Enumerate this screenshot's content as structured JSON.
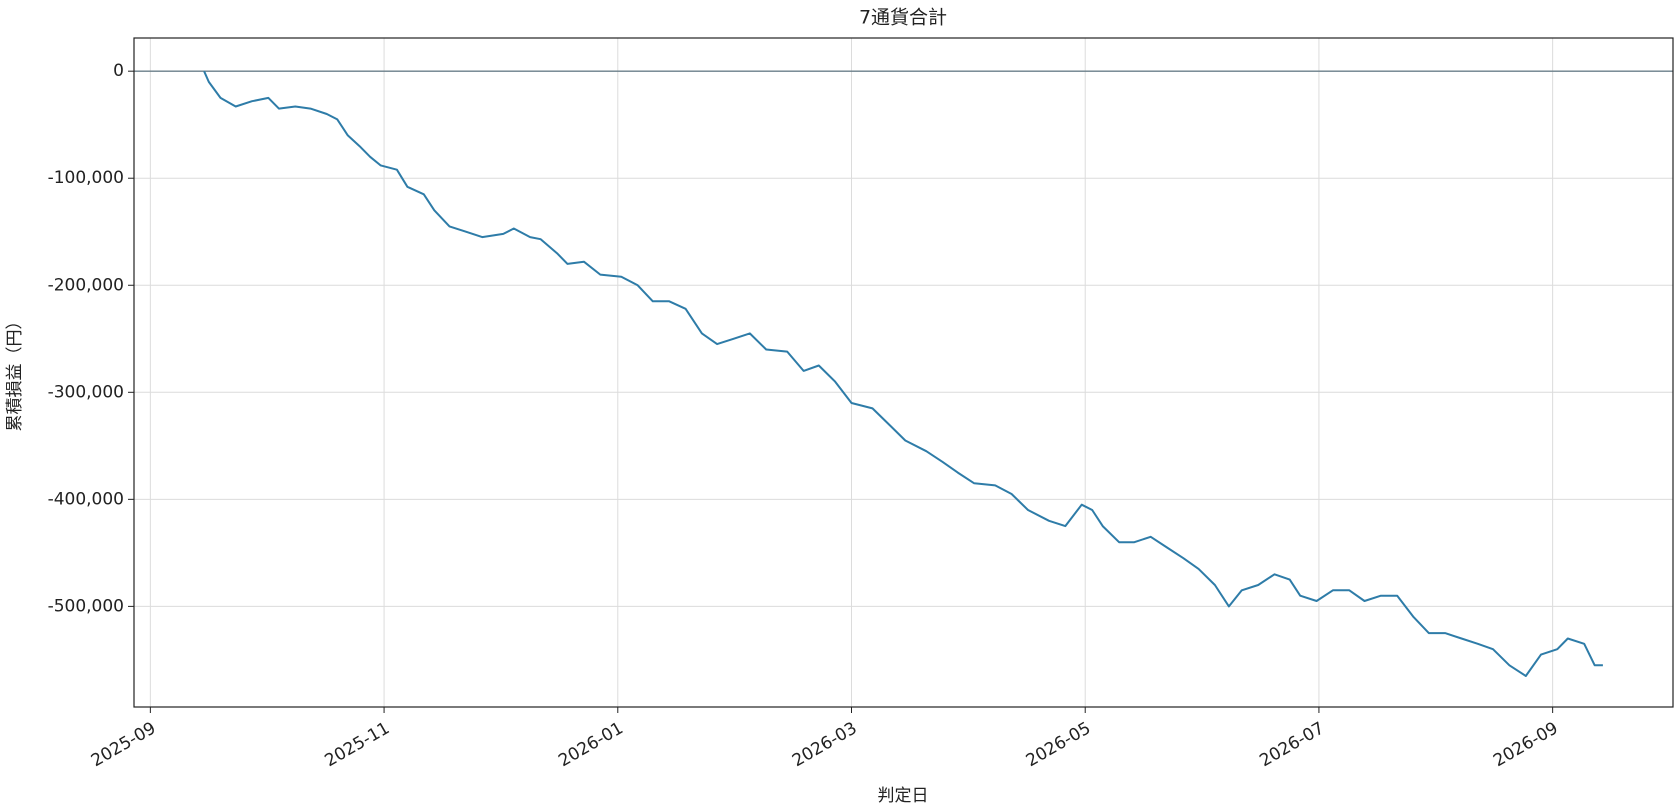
{
  "chart_data": {
    "type": "line",
    "title": "7通貨合計",
    "xlabel": "判定日",
    "ylabel": "累積損益（円）",
    "x": [
      0.46,
      0.5,
      0.6,
      0.73,
      0.87,
      1.01,
      1.1,
      1.24,
      1.37,
      1.51,
      1.6,
      1.69,
      1.79,
      1.88,
      1.97,
      2.11,
      2.2,
      2.34,
      2.43,
      2.56,
      2.7,
      2.84,
      3.02,
      3.11,
      3.25,
      3.34,
      3.48,
      3.57,
      3.71,
      3.85,
      4.03,
      4.17,
      4.3,
      4.44,
      4.58,
      4.72,
      4.85,
      4.99,
      5.13,
      5.27,
      5.45,
      5.59,
      5.72,
      5.86,
      6.0,
      6.18,
      6.32,
      6.46,
      6.64,
      6.78,
      6.91,
      7.05,
      7.23,
      7.37,
      7.51,
      7.69,
      7.83,
      7.97,
      8.06,
      8.15,
      8.29,
      8.42,
      8.56,
      8.7,
      8.84,
      8.97,
      9.11,
      9.23,
      9.34,
      9.48,
      9.62,
      9.75,
      9.84,
      9.98,
      10.12,
      10.26,
      10.39,
      10.53,
      10.67,
      10.81,
      10.94,
      11.08,
      11.22,
      11.36,
      11.49,
      11.63,
      11.77,
      11.9,
      12.04,
      12.13,
      12.27,
      12.36,
      12.43
    ],
    "values": [
      0,
      -10000,
      -25000,
      -33000,
      -28000,
      -25000,
      -35000,
      -33000,
      -35000,
      -40000,
      -45000,
      -60000,
      -70000,
      -80000,
      -88000,
      -92000,
      -108000,
      -115000,
      -130000,
      -145000,
      -150000,
      -155000,
      -152000,
      -147000,
      -155000,
      -157000,
      -170000,
      -180000,
      -178000,
      -190000,
      -192000,
      -200000,
      -215000,
      -215000,
      -222000,
      -245000,
      -255000,
      -250000,
      -245000,
      -260000,
      -262000,
      -280000,
      -275000,
      -290000,
      -310000,
      -315000,
      -330000,
      -345000,
      -355000,
      -365000,
      -375000,
      -385000,
      -387000,
      -395000,
      -410000,
      -420000,
      -425000,
      -405000,
      -410000,
      -425000,
      -440000,
      -440000,
      -435000,
      -445000,
      -455000,
      -465000,
      -480000,
      -500000,
      -485000,
      -480000,
      -470000,
      -475000,
      -490000,
      -495000,
      -485000,
      -485000,
      -495000,
      -490000,
      -490000,
      -510000,
      -525000,
      -525000,
      -530000,
      -535000,
      -540000,
      -555000,
      -565000,
      -545000,
      -540000,
      -530000,
      -535000,
      -555000,
      -555000
    ],
    "color": "#2e7ca8",
    "xlim": [
      -0.14,
      13.03
    ],
    "xticks": [
      {
        "value": 0,
        "label": "2025-09"
      },
      {
        "value": 2,
        "label": "2025-11"
      },
      {
        "value": 4,
        "label": "2026-01"
      },
      {
        "value": 6,
        "label": "2026-03"
      },
      {
        "value": 8,
        "label": "2026-05"
      },
      {
        "value": 10,
        "label": "2026-07"
      },
      {
        "value": 12,
        "label": "2026-09"
      }
    ],
    "ylim": [
      -594000,
      31000
    ],
    "yticks": [
      {
        "value": -500000,
        "label": "-500,000"
      },
      {
        "value": -400000,
        "label": "-400,000"
      },
      {
        "value": -300000,
        "label": "-300,000"
      },
      {
        "value": -200000,
        "label": "-200,000"
      },
      {
        "value": -100000,
        "label": "-100,000"
      },
      0
    ],
    "hline": 0,
    "grid": true
  }
}
